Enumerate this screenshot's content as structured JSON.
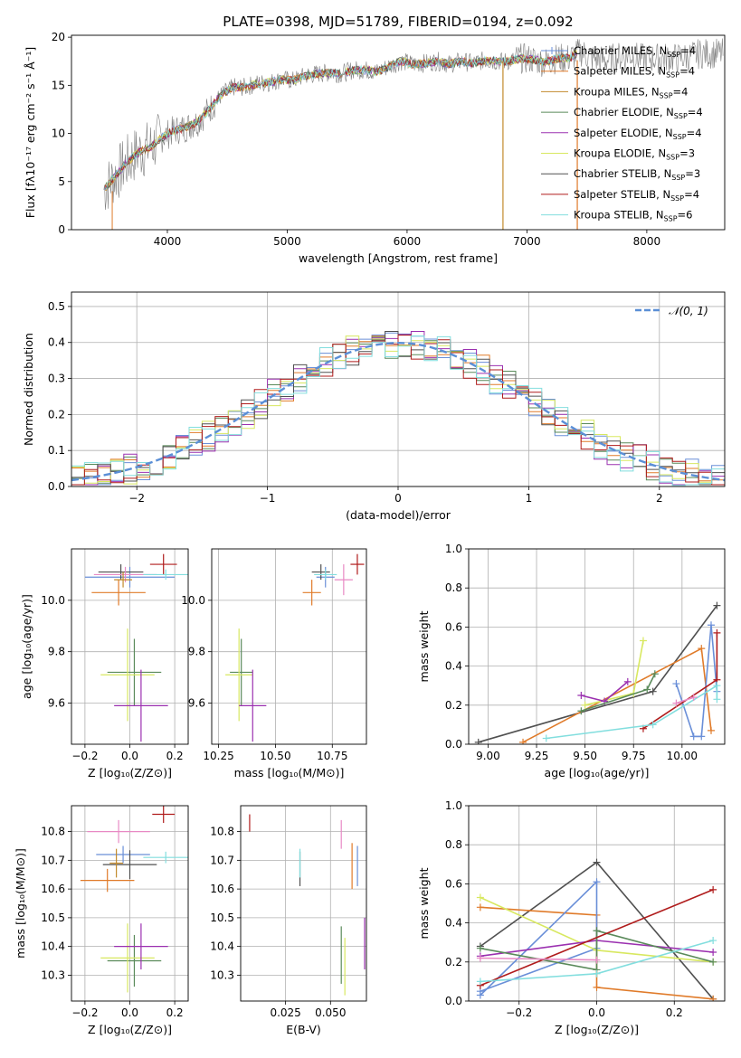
{
  "title": "PLATE=0398, MJD=51789, FIBERID=0194, z=0.092",
  "chart_data": [
    {
      "id": "spectrum",
      "type": "line",
      "xlabel": "wavelength [Angstrom, rest frame]",
      "ylabel": "Flux [fλ10⁻¹⁷ erg cm⁻² s⁻¹ Å⁻¹]",
      "xlim": [
        3200,
        8650
      ],
      "ylim": [
        0,
        20.2
      ],
      "xticks": [
        4000,
        5000,
        6000,
        7000,
        8000
      ],
      "yticks": [
        0,
        5,
        10,
        15,
        20
      ],
      "grid": false,
      "legend": "right",
      "data_series": {
        "name": "",
        "color": "#808080"
      },
      "x": [
        3470,
        3560,
        3650,
        3750,
        3850,
        3950,
        4050,
        4150,
        4250,
        4350,
        4450,
        4550,
        4650,
        4750,
        4850,
        4950,
        5050,
        5150,
        5250,
        5350,
        5450,
        5550,
        5650,
        5750,
        5850,
        5950,
        6050,
        6150,
        6250,
        6350,
        6450,
        6550,
        6650,
        6750,
        6850,
        6950,
        7050,
        7150,
        7250,
        7350,
        7450,
        7550,
        7650,
        7750,
        7850,
        7950,
        8050,
        8150,
        8250,
        8350,
        8450
      ],
      "y": [
        4.2,
        5.5,
        6.8,
        8.0,
        8.5,
        9.5,
        10.3,
        10.6,
        11.2,
        12.5,
        14.0,
        14.8,
        14.8,
        15.2,
        15.3,
        15.6,
        15.5,
        16.0,
        16.2,
        16.3,
        16.2,
        16.6,
        16.6,
        16.4,
        17.0,
        17.5,
        17.2,
        17.3,
        17.5,
        17.2,
        17.5,
        17.3,
        17.6,
        17.5,
        17.5,
        17.8,
        17.7,
        17.4,
        17.8,
        17.8,
        18.5,
        17.8,
        17.6,
        17.9,
        18.2,
        17.8,
        17.8,
        17.9,
        17.8,
        18.0,
        18.3
      ],
      "series": [
        {
          "name": "Chabrier MILES, N",
          "suffix": "=4",
          "color": "#6a8fd8",
          "style": "plus"
        },
        {
          "name": "Salpeter MILES, N",
          "suffix": "=4",
          "color": "#e07b2a"
        },
        {
          "name": "Kroupa MILES, N",
          "suffix": "=4",
          "color": "#c28a2c"
        },
        {
          "name": "Chabrier ELODIE, N",
          "suffix": "=4",
          "color": "#5a8a5a"
        },
        {
          "name": "Salpeter ELODIE, N",
          "suffix": "=4",
          "color": "#9b30b0"
        },
        {
          "name": "Kroupa ELODIE, N",
          "suffix": "=3",
          "color": "#d8e860"
        },
        {
          "name": "Chabrier STELIB, N",
          "suffix": "=3",
          "color": "#505050"
        },
        {
          "name": "Salpeter STELIB, N",
          "suffix": "=4",
          "color": "#b01c1c"
        },
        {
          "name": "Kroupa STELIB, N",
          "suffix": "=6",
          "color": "#82dede"
        }
      ],
      "ssp_subscript": "SSP"
    },
    {
      "id": "residuals",
      "type": "bar",
      "xlabel": "(data-model)/error",
      "ylabel": "Normed distribution",
      "xlim": [
        -2.5,
        2.5
      ],
      "ylim": [
        0,
        0.54
      ],
      "xticks": [
        -2,
        -1,
        0,
        1,
        2
      ],
      "xtick_labels": [
        "−2",
        "−1",
        "0",
        "1",
        "2"
      ],
      "yticks": [
        0,
        0.1,
        0.2,
        0.3,
        0.4,
        0.5
      ],
      "ytick_labels": [
        "0.0",
        "0.1",
        "0.2",
        "0.3",
        "0.4",
        "0.5"
      ],
      "grid": true,
      "legend": "top-right",
      "gaussian_label": "𝒩(0, 1)",
      "gaussian_color": "#5b8fd6",
      "bins_start": -2.5,
      "bin_width": 0.1,
      "hist_colors": [
        "#6a8fd8",
        "#e07b2a",
        "#5a8a5a",
        "#9b30b0",
        "#d8e860",
        "#505050",
        "#b01c1c",
        "#82dede"
      ]
    },
    {
      "id": "age-vs-z",
      "type": "scatter",
      "xlabel": "Z [log₁₀(Z/Z⊙)]",
      "ylabel": "age  [log₁₀(age/yr)]",
      "xlim": [
        -0.26,
        0.26
      ],
      "ylim": [
        9.44,
        10.2
      ],
      "xticks": [
        -0.2,
        0.0,
        0.2
      ],
      "xtick_labels": [
        "−0.2",
        "0.0",
        "0.2"
      ],
      "yticks": [
        9.6,
        9.8,
        10.0
      ],
      "ytick_labels": [
        "9.6",
        "9.8",
        "10.0"
      ],
      "grid": true,
      "points": [
        {
          "x": 0.0,
          "y": 10.09,
          "xe": 0.2,
          "ye": 0.04,
          "c": "#6a8fd8"
        },
        {
          "x": -0.05,
          "y": 10.03,
          "xe": 0.12,
          "ye": 0.05,
          "c": "#e07b2a"
        },
        {
          "x": -0.04,
          "y": 10.11,
          "xe": 0.1,
          "ye": 0.03,
          "c": "#505050"
        },
        {
          "x": -0.02,
          "y": 10.1,
          "xe": 0.14,
          "ye": 0.03,
          "c": "#e889c4"
        },
        {
          "x": 0.15,
          "y": 10.14,
          "xe": 0.06,
          "ye": 0.04,
          "c": "#b01c1c"
        },
        {
          "x": 0.16,
          "y": 10.1,
          "xe": 0.1,
          "ye": 0.02,
          "c": "#82dede"
        },
        {
          "x": -0.03,
          "y": 10.08,
          "xe": 0.04,
          "ye": 0.03,
          "c": "#c28a2c"
        },
        {
          "x": 0.02,
          "y": 9.72,
          "xe": 0.12,
          "ye": 0.13,
          "c": "#5a8a5a"
        },
        {
          "x": -0.01,
          "y": 9.71,
          "xe": 0.12,
          "ye": 0.18,
          "c": "#d8e860"
        },
        {
          "x": 0.05,
          "y": 9.59,
          "xe": 0.12,
          "ye": 0.14,
          "c": "#9b30b0"
        }
      ]
    },
    {
      "id": "age-vs-mass",
      "type": "scatter",
      "xlabel": "mass [log₁₀(M/M⊙)]",
      "ylabel": "",
      "xlim": [
        10.22,
        10.9
      ],
      "ylim": [
        9.44,
        10.2
      ],
      "xticks": [
        10.25,
        10.5,
        10.75
      ],
      "xtick_labels": [
        "10.25",
        "10.50",
        "10.75"
      ],
      "yticks": [
        9.6,
        9.8,
        10.0
      ],
      "ytick_labels": [
        "9.6",
        "9.8",
        "10.0"
      ],
      "grid": true,
      "points": [
        {
          "x": 10.72,
          "y": 10.09,
          "xe": 0.04,
          "ye": 0.04,
          "c": "#6a8fd8"
        },
        {
          "x": 10.66,
          "y": 10.03,
          "xe": 0.04,
          "ye": 0.05,
          "c": "#e07b2a"
        },
        {
          "x": 10.7,
          "y": 10.11,
          "xe": 0.04,
          "ye": 0.03,
          "c": "#505050"
        },
        {
          "x": 10.8,
          "y": 10.08,
          "xe": 0.04,
          "ye": 0.06,
          "c": "#e889c4"
        },
        {
          "x": 10.86,
          "y": 10.14,
          "xe": 0.03,
          "ye": 0.04,
          "c": "#b01c1c"
        },
        {
          "x": 10.72,
          "y": 10.1,
          "xe": 0.05,
          "ye": 0.02,
          "c": "#82dede"
        },
        {
          "x": 10.35,
          "y": 9.72,
          "xe": 0.05,
          "ye": 0.13,
          "c": "#5a8a5a"
        },
        {
          "x": 10.34,
          "y": 9.71,
          "xe": 0.06,
          "ye": 0.18,
          "c": "#d8e860"
        },
        {
          "x": 10.4,
          "y": 9.59,
          "xe": 0.06,
          "ye": 0.14,
          "c": "#9b30b0"
        }
      ]
    },
    {
      "id": "weight-vs-age",
      "type": "line",
      "xlabel": "age  [log₁₀(age/yr)]",
      "ylabel": "mass weight",
      "xlim": [
        8.9,
        10.22
      ],
      "ylim": [
        0,
        1.0
      ],
      "xticks": [
        9.0,
        9.25,
        9.5,
        9.75,
        10.0
      ],
      "xtick_labels": [
        "9.00",
        "9.25",
        "9.50",
        "9.75",
        "10.00"
      ],
      "yticks": [
        0,
        0.2,
        0.4,
        0.6,
        0.8,
        1.0
      ],
      "ytick_labels": [
        "0.0",
        "0.2",
        "0.4",
        "0.6",
        "0.8",
        "1.0"
      ],
      "grid": true,
      "lines": [
        {
          "c": "#505050",
          "pts": [
            [
              8.95,
              0.01
            ],
            [
              9.85,
              0.27
            ],
            [
              10.18,
              0.71
            ]
          ]
        },
        {
          "c": "#e07b2a",
          "pts": [
            [
              9.18,
              0.01
            ],
            [
              10.1,
              0.49
            ],
            [
              10.15,
              0.07
            ]
          ]
        },
        {
          "c": "#6a8fd8",
          "pts": [
            [
              9.97,
              0.31
            ],
            [
              10.06,
              0.04
            ],
            [
              10.1,
              0.04
            ],
            [
              10.15,
              0.61
            ],
            [
              10.18,
              0.27
            ]
          ]
        },
        {
          "c": "#d8e860",
          "pts": [
            [
              9.5,
              0.2
            ],
            [
              9.75,
              0.26
            ],
            [
              9.8,
              0.53
            ]
          ]
        },
        {
          "c": "#9b30b0",
          "pts": [
            [
              9.48,
              0.25
            ],
            [
              9.6,
              0.22
            ],
            [
              9.72,
              0.32
            ]
          ]
        },
        {
          "c": "#5a8a5a",
          "pts": [
            [
              9.48,
              0.17
            ],
            [
              9.82,
              0.28
            ],
            [
              9.86,
              0.36
            ]
          ]
        },
        {
          "c": "#b01c1c",
          "pts": [
            [
              9.8,
              0.08
            ],
            [
              10.18,
              0.33
            ],
            [
              10.18,
              0.57
            ]
          ]
        },
        {
          "c": "#82dede",
          "pts": [
            [
              9.3,
              0.03
            ],
            [
              9.85,
              0.1
            ],
            [
              10.18,
              0.3
            ],
            [
              10.18,
              0.23
            ]
          ]
        },
        {
          "c": "#e889c4",
          "pts": [
            [
              9.97,
              0.21
            ],
            [
              10.06,
              0.24
            ]
          ]
        }
      ]
    },
    {
      "id": "mass-vs-z",
      "type": "scatter",
      "xlabel": "Z [log₁₀(Z/Z⊙)]",
      "ylabel": "mass [log₁₀(M/M⊙)]",
      "xlim": [
        -0.26,
        0.26
      ],
      "ylim": [
        10.21,
        10.89
      ],
      "xticks": [
        -0.2,
        0.0,
        0.2
      ],
      "xtick_labels": [
        "−0.2",
        "0.0",
        "0.2"
      ],
      "yticks": [
        10.3,
        10.4,
        10.5,
        10.6,
        10.7,
        10.8
      ],
      "ytick_labels": [
        "10.3",
        "10.4",
        "10.5",
        "10.6",
        "10.7",
        "10.8"
      ],
      "grid": true,
      "points": [
        {
          "x": -0.03,
          "y": 10.72,
          "xe": 0.12,
          "ye": 0.03,
          "c": "#6a8fd8"
        },
        {
          "x": -0.1,
          "y": 10.63,
          "xe": 0.12,
          "ye": 0.04,
          "c": "#e07b2a"
        },
        {
          "x": 0.0,
          "y": 10.685,
          "xe": 0.12,
          "ye": 0.05,
          "c": "#505050"
        },
        {
          "x": -0.05,
          "y": 10.8,
          "xe": 0.14,
          "ye": 0.04,
          "c": "#e889c4"
        },
        {
          "x": 0.15,
          "y": 10.86,
          "xe": 0.05,
          "ye": 0.03,
          "c": "#b01c1c"
        },
        {
          "x": 0.16,
          "y": 10.71,
          "xe": 0.1,
          "ye": 0.02,
          "c": "#82dede"
        },
        {
          "x": -0.06,
          "y": 10.69,
          "xe": 0.03,
          "ye": 0.05,
          "c": "#c28a2c"
        },
        {
          "x": 0.02,
          "y": 10.35,
          "xe": 0.12,
          "ye": 0.09,
          "c": "#5a8a5a"
        },
        {
          "x": -0.01,
          "y": 10.36,
          "xe": 0.12,
          "ye": 0.12,
          "c": "#d8e860"
        },
        {
          "x": 0.05,
          "y": 10.4,
          "xe": 0.12,
          "ye": 0.08,
          "c": "#9b30b0"
        }
      ]
    },
    {
      "id": "mass-vs-ebv",
      "type": "scatter",
      "xlabel": "E(B-V)",
      "ylabel": "",
      "xlim": [
        0.0,
        0.07
      ],
      "ylim": [
        10.21,
        10.89
      ],
      "xticks": [
        0.025,
        0.05
      ],
      "xtick_labels": [
        "0.025",
        "0.050"
      ],
      "yticks": [
        10.3,
        10.4,
        10.5,
        10.6,
        10.7,
        10.8
      ],
      "ytick_labels": [
        "10.3",
        "10.4",
        "10.5",
        "10.6",
        "10.7",
        "10.8"
      ],
      "grid": true,
      "points": [
        {
          "x": 0.005,
          "y": 10.83,
          "xe": 0.0,
          "ye": 0.03,
          "c": "#b01c1c"
        },
        {
          "x": 0.033,
          "y": 10.67,
          "xe": 0.0,
          "ye": 0.06,
          "c": "#505050"
        },
        {
          "x": 0.033,
          "y": 10.69,
          "xe": 0.0,
          "ye": 0.05,
          "c": "#82dede"
        },
        {
          "x": 0.056,
          "y": 10.79,
          "xe": 0.0,
          "ye": 0.05,
          "c": "#e889c4"
        },
        {
          "x": 0.056,
          "y": 10.37,
          "xe": 0.0,
          "ye": 0.1,
          "c": "#5a8a5a"
        },
        {
          "x": 0.058,
          "y": 10.33,
          "xe": 0.0,
          "ye": 0.1,
          "c": "#d8e860"
        },
        {
          "x": 0.062,
          "y": 10.68,
          "xe": 0.0,
          "ye": 0.08,
          "c": "#e07b2a"
        },
        {
          "x": 0.065,
          "y": 10.68,
          "xe": 0.0,
          "ye": 0.07,
          "c": "#6a8fd8"
        },
        {
          "x": 0.069,
          "y": 10.41,
          "xe": 0.0,
          "ye": 0.09,
          "c": "#9b30b0"
        }
      ]
    },
    {
      "id": "weight-vs-z",
      "type": "line",
      "xlabel": "Z [log₁₀(Z/Z⊙)]",
      "ylabel": "mass weight",
      "xlim": [
        -0.33,
        0.33
      ],
      "ylim": [
        0,
        1.0
      ],
      "xticks": [
        -0.2,
        0.0,
        0.2
      ],
      "xtick_labels": [
        "−0.2",
        "0.0",
        "0.2"
      ],
      "yticks": [
        0,
        0.2,
        0.4,
        0.6,
        0.8,
        1.0
      ],
      "ytick_labels": [
        "0.0",
        "0.2",
        "0.4",
        "0.6",
        "0.8",
        "1.0"
      ],
      "grid": true,
      "lines": [
        {
          "c": "#505050",
          "pts": [
            [
              -0.3,
              0.28
            ],
            [
              0.0,
              0.71
            ],
            [
              0.3,
              0.01
            ]
          ]
        },
        {
          "c": "#e07b2a",
          "pts": [
            [
              -0.3,
              0.48
            ],
            [
              0.0,
              0.44
            ],
            [
              0.0,
              0.07
            ],
            [
              0.3,
              0.01
            ]
          ]
        },
        {
          "c": "#6a8fd8",
          "pts": [
            [
              -0.3,
              0.03
            ],
            [
              0.0,
              0.61
            ],
            [
              0.0,
              0.27
            ],
            [
              -0.3,
              0.05
            ]
          ]
        },
        {
          "c": "#d8e860",
          "pts": [
            [
              -0.3,
              0.53
            ],
            [
              0.0,
              0.26
            ],
            [
              0.3,
              0.2
            ]
          ]
        },
        {
          "c": "#9b30b0",
          "pts": [
            [
              -0.3,
              0.23
            ],
            [
              0.0,
              0.31
            ],
            [
              0.3,
              0.25
            ]
          ]
        },
        {
          "c": "#5a8a5a",
          "pts": [
            [
              -0.3,
              0.27
            ],
            [
              0.0,
              0.16
            ],
            [
              0.0,
              0.36
            ],
            [
              0.3,
              0.2
            ]
          ]
        },
        {
          "c": "#b01c1c",
          "pts": [
            [
              -0.3,
              0.08
            ],
            [
              0.3,
              0.57
            ]
          ]
        },
        {
          "c": "#82dede",
          "pts": [
            [
              -0.3,
              0.1
            ],
            [
              0.0,
              0.14
            ],
            [
              0.3,
              0.31
            ]
          ]
        },
        {
          "c": "#e889c4",
          "pts": [
            [
              -0.3,
              0.22
            ],
            [
              0.0,
              0.21
            ]
          ]
        }
      ]
    }
  ]
}
